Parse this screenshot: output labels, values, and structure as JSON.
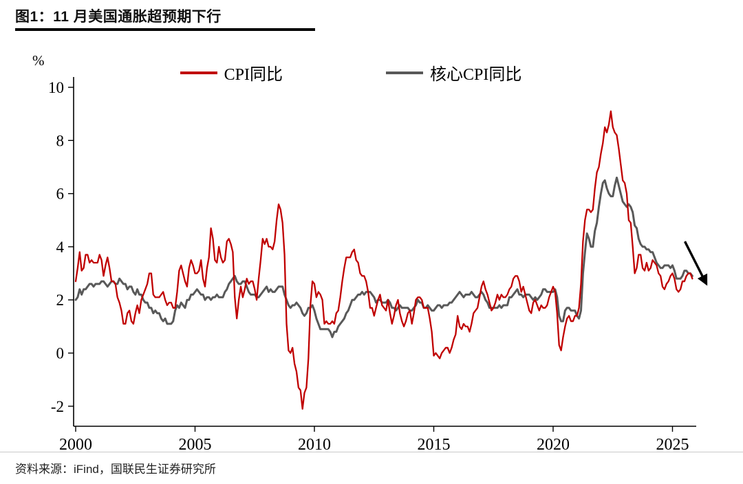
{
  "header": {
    "title": "图1：11 月美国通胀超预期下行"
  },
  "legend": [
    {
      "label": "CPI同比",
      "color": "#c00000"
    },
    {
      "label": "核心CPI同比",
      "color": "#595959"
    }
  ],
  "source": {
    "text": "资料来源：iFind，国联民生证券研究所"
  },
  "chart_data": {
    "type": "line",
    "title": "图1：11 月美国通胀超预期下行",
    "xlabel": "",
    "ylabel": "%",
    "ylim": [
      -2,
      10
    ],
    "y_ticks": [
      -2,
      0,
      2,
      4,
      6,
      8,
      10
    ],
    "x_ticks": [
      2000,
      2005,
      2010,
      2015,
      2020,
      2025
    ],
    "xlim": [
      2000,
      2026
    ],
    "grid": false,
    "legend_position": "top-center",
    "frequency": "monthly",
    "x_start": "2000-01",
    "x_end": "2025-11",
    "series": [
      {
        "name": "CPI同比",
        "color": "#c00000",
        "values": [
          2.7,
          3.2,
          3.8,
          3.1,
          3.2,
          3.7,
          3.7,
          3.4,
          3.5,
          3.4,
          3.4,
          3.4,
          3.7,
          3.5,
          2.9,
          3.3,
          3.6,
          3.2,
          2.7,
          2.7,
          2.6,
          2.1,
          1.9,
          1.6,
          1.1,
          1.1,
          1.5,
          1.6,
          1.2,
          1.1,
          1.5,
          1.8,
          1.5,
          2.0,
          2.2,
          2.4,
          2.6,
          3.0,
          3.0,
          2.2,
          2.1,
          2.1,
          2.1,
          2.2,
          2.3,
          2.0,
          1.8,
          1.9,
          1.9,
          1.7,
          1.7,
          2.3,
          3.1,
          3.3,
          3.0,
          2.7,
          2.5,
          3.2,
          3.5,
          3.3,
          3.0,
          3.0,
          3.1,
          3.5,
          2.8,
          2.5,
          3.2,
          3.6,
          4.7,
          4.3,
          3.5,
          3.4,
          4.0,
          3.6,
          3.4,
          3.5,
          4.2,
          4.3,
          4.1,
          3.8,
          2.1,
          1.3,
          2.0,
          2.5,
          2.1,
          2.4,
          2.8,
          2.6,
          2.7,
          2.7,
          2.4,
          2.0,
          2.8,
          3.5,
          4.3,
          4.1,
          4.3,
          4.0,
          4.0,
          3.9,
          4.2,
          5.0,
          5.6,
          5.4,
          4.9,
          3.7,
          1.1,
          0.1,
          0.0,
          0.2,
          -0.4,
          -0.7,
          -1.3,
          -1.4,
          -2.1,
          -1.5,
          -1.3,
          -0.2,
          1.8,
          2.7,
          2.6,
          2.1,
          2.3,
          2.2,
          2.0,
          1.1,
          1.2,
          1.1,
          1.1,
          1.2,
          1.1,
          1.5,
          1.6,
          2.1,
          2.7,
          3.2,
          3.6,
          3.6,
          3.6,
          3.8,
          3.9,
          3.5,
          3.4,
          3.0,
          2.9,
          2.9,
          2.7,
          2.3,
          1.7,
          1.7,
          1.4,
          1.7,
          2.0,
          2.2,
          1.8,
          1.7,
          1.6,
          2.0,
          1.5,
          1.1,
          1.4,
          1.8,
          2.0,
          1.5,
          1.2,
          1.0,
          1.2,
          1.5,
          1.6,
          1.1,
          1.5,
          2.0,
          2.1,
          2.1,
          2.0,
          1.7,
          1.7,
          1.7,
          1.3,
          0.8,
          -0.1,
          0.0,
          -0.1,
          -0.2,
          0.0,
          0.1,
          0.2,
          0.2,
          0.0,
          0.2,
          0.5,
          0.7,
          1.4,
          1.0,
          0.9,
          1.1,
          1.0,
          1.0,
          0.8,
          1.1,
          1.5,
          1.6,
          1.7,
          2.1,
          2.5,
          2.7,
          2.4,
          2.2,
          1.9,
          1.6,
          1.7,
          1.9,
          2.2,
          2.0,
          2.2,
          2.1,
          2.1,
          2.2,
          2.4,
          2.5,
          2.8,
          2.9,
          2.9,
          2.7,
          2.3,
          2.5,
          2.2,
          1.9,
          1.6,
          1.5,
          1.9,
          2.0,
          1.8,
          1.6,
          1.8,
          1.7,
          1.7,
          1.8,
          2.1,
          2.3,
          2.5,
          2.3,
          1.5,
          0.3,
          0.1,
          0.6,
          1.0,
          1.3,
          1.4,
          1.2,
          1.2,
          1.4,
          1.4,
          1.7,
          2.6,
          4.2,
          5.0,
          5.4,
          5.4,
          5.3,
          5.4,
          6.2,
          6.8,
          7.0,
          7.5,
          7.9,
          8.5,
          8.3,
          8.6,
          9.1,
          8.5,
          8.3,
          8.2,
          7.7,
          7.1,
          6.5,
          6.4,
          6.0,
          5.0,
          4.9,
          4.0,
          3.0,
          3.2,
          3.7,
          3.7,
          3.2,
          3.1,
          3.4,
          3.1,
          3.2,
          3.5,
          3.4,
          3.3,
          3.0,
          2.9,
          2.5,
          2.4,
          2.6,
          2.7,
          2.9,
          3.0,
          2.8,
          2.4,
          2.3,
          2.4,
          2.7,
          2.7,
          2.9,
          3.0,
          3.0,
          2.8
        ]
      },
      {
        "name": "核心CPI同比",
        "color": "#595959",
        "values": [
          2.0,
          2.1,
          2.4,
          2.2,
          2.4,
          2.4,
          2.5,
          2.6,
          2.6,
          2.5,
          2.6,
          2.6,
          2.6,
          2.7,
          2.7,
          2.6,
          2.5,
          2.6,
          2.7,
          2.7,
          2.6,
          2.6,
          2.8,
          2.7,
          2.6,
          2.6,
          2.4,
          2.5,
          2.5,
          2.3,
          2.2,
          2.4,
          2.2,
          2.2,
          2.0,
          1.9,
          1.9,
          1.7,
          1.7,
          1.5,
          1.6,
          1.5,
          1.5,
          1.3,
          1.2,
          1.3,
          1.1,
          1.1,
          1.1,
          1.2,
          1.6,
          1.8,
          1.7,
          1.9,
          1.8,
          1.7,
          2.0,
          2.0,
          2.2,
          2.2,
          2.3,
          2.4,
          2.3,
          2.2,
          2.2,
          2.0,
          2.1,
          2.1,
          2.0,
          2.1,
          2.1,
          2.2,
          2.1,
          2.1,
          2.1,
          2.3,
          2.4,
          2.6,
          2.7,
          2.8,
          2.9,
          2.7,
          2.6,
          2.6,
          2.7,
          2.7,
          2.5,
          2.3,
          2.2,
          2.2,
          2.2,
          2.1,
          2.1,
          2.2,
          2.3,
          2.4,
          2.5,
          2.3,
          2.4,
          2.3,
          2.3,
          2.4,
          2.5,
          2.5,
          2.5,
          2.2,
          2.0,
          1.8,
          1.7,
          1.8,
          1.8,
          1.9,
          1.8,
          1.7,
          1.5,
          1.4,
          1.5,
          1.7,
          1.7,
          1.8,
          1.6,
          1.3,
          1.1,
          0.9,
          0.9,
          0.9,
          0.9,
          0.9,
          0.8,
          0.6,
          0.8,
          0.8,
          1.0,
          1.1,
          1.2,
          1.3,
          1.5,
          1.6,
          1.8,
          2.0,
          2.0,
          2.1,
          2.2,
          2.2,
          2.3,
          2.2,
          2.3,
          2.3,
          2.3,
          2.2,
          2.1,
          1.9,
          2.0,
          2.0,
          1.9,
          1.9,
          1.9,
          2.0,
          1.9,
          1.7,
          1.7,
          1.6,
          1.7,
          1.8,
          1.7,
          1.7,
          1.7,
          1.7,
          1.6,
          1.6,
          1.7,
          1.8,
          2.0,
          1.9,
          1.9,
          1.7,
          1.7,
          1.8,
          1.7,
          1.6,
          1.6,
          1.7,
          1.8,
          1.8,
          1.7,
          1.8,
          1.8,
          1.8,
          1.9,
          1.9,
          2.0,
          2.1,
          2.2,
          2.3,
          2.2,
          2.1,
          2.2,
          2.2,
          2.2,
          2.3,
          2.2,
          2.1,
          2.1,
          2.2,
          2.3,
          2.2,
          2.0,
          1.9,
          1.7,
          1.7,
          1.7,
          1.7,
          1.7,
          1.8,
          1.7,
          1.8,
          1.8,
          1.8,
          2.1,
          2.1,
          2.2,
          2.3,
          2.4,
          2.2,
          2.2,
          2.1,
          2.2,
          2.2,
          2.2,
          2.1,
          2.0,
          2.1,
          2.0,
          2.1,
          2.2,
          2.4,
          2.4,
          2.3,
          2.3,
          2.3,
          2.3,
          2.4,
          2.1,
          1.4,
          1.2,
          1.2,
          1.6,
          1.7,
          1.7,
          1.6,
          1.6,
          1.6,
          1.4,
          1.3,
          1.6,
          3.0,
          3.8,
          4.5,
          4.3,
          4.0,
          4.0,
          4.6,
          4.9,
          5.5,
          6.0,
          6.4,
          6.5,
          6.2,
          6.0,
          5.9,
          5.9,
          6.3,
          6.6,
          6.3,
          6.0,
          5.7,
          5.6,
          5.5,
          5.6,
          5.5,
          5.3,
          4.8,
          4.7,
          4.3,
          4.1,
          4.0,
          4.0,
          3.9,
          3.9,
          3.8,
          3.8,
          3.6,
          3.4,
          3.3,
          3.2,
          3.2,
          3.3,
          3.3,
          3.3,
          3.2,
          3.3,
          3.1,
          2.8,
          2.8,
          2.8,
          2.9,
          3.1,
          3.1,
          3.0,
          3.0,
          2.9
        ]
      }
    ],
    "annotation": {
      "type": "arrow",
      "from": [
        2025.52,
        4.2
      ],
      "to": [
        2026.42,
        2.6
      ],
      "color": "#000000"
    }
  }
}
